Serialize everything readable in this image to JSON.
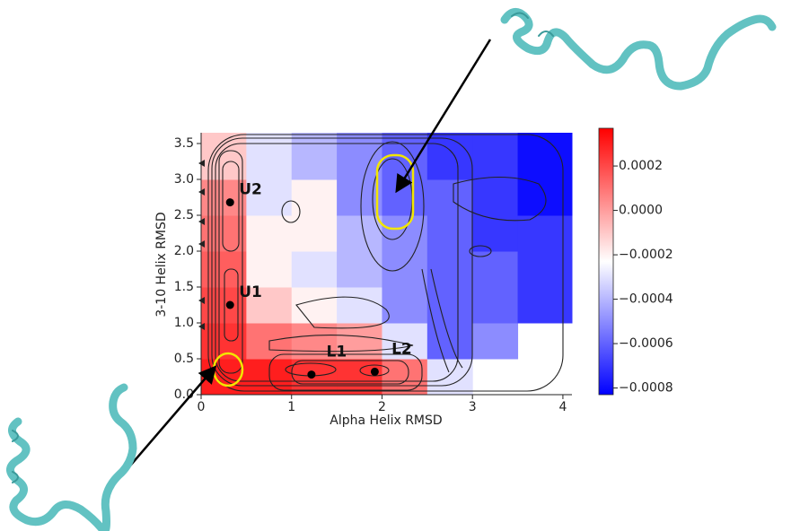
{
  "chart_data": {
    "type": "heatmap",
    "xlabel": "Alpha Helix RMSD",
    "ylabel": "3-10 Helix RMSD",
    "x_bins": [
      0,
      0.5,
      1,
      1.5,
      2,
      2.5,
      3,
      3.5,
      4.1
    ],
    "y_bins": [
      0,
      0.5,
      1,
      1.5,
      2,
      2.5,
      3,
      3.65
    ],
    "values": [
      [
        0.0003,
        0.0003,
        0.00025,
        0.00025,
        0.0001,
        -0.0003,
        null,
        null
      ],
      [
        0.00025,
        0.0001,
        5e-05,
        0.0,
        -0.0003,
        -0.0006,
        -0.0005,
        null
      ],
      [
        0.0002,
        -0.0001,
        -0.0002,
        -0.0003,
        -0.0005,
        -0.0006,
        -0.0006,
        -0.0007
      ],
      [
        0.00015,
        -0.0002,
        -0.0003,
        -0.0004,
        -0.0005,
        -0.0006,
        -0.0006,
        -0.0007
      ],
      [
        0.0001,
        -0.0002,
        -0.0002,
        -0.0004,
        -0.0005,
        -0.0006,
        -0.0007,
        -0.0007
      ],
      [
        5e-05,
        -0.0003,
        -0.0002,
        -0.0005,
        -0.0006,
        -0.0006,
        -0.0007,
        -0.0008
      ],
      [
        -0.0001,
        -0.0003,
        -0.0004,
        -0.0005,
        -0.0006,
        -0.0007,
        -0.0007,
        -0.0008
      ]
    ],
    "colormap": "bwr",
    "xlim": [
      0,
      4.1
    ],
    "ylim": [
      0,
      3.65
    ],
    "clim": [
      -0.00083,
      0.00037
    ],
    "xticks": [
      0,
      1,
      2,
      3,
      4
    ],
    "yticks": [
      {
        "value": 0,
        "label": "0.0"
      },
      {
        "value": 0.5,
        "label": "0.5"
      },
      {
        "value": 1,
        "label": "1.0"
      },
      {
        "value": 1.5,
        "label": "1.5"
      },
      {
        "value": 2,
        "label": "2.0"
      },
      {
        "value": 2.5,
        "label": "2.5"
      },
      {
        "value": 3,
        "label": "3.0"
      },
      {
        "value": 3.5,
        "label": "3.5"
      }
    ],
    "cticks": [
      {
        "value": 0.0002,
        "label": "0.0002"
      },
      {
        "value": 0,
        "label": "0.0000"
      },
      {
        "value": -0.0002,
        "label": "−0.0002"
      },
      {
        "value": -0.0004,
        "label": "−0.0004"
      },
      {
        "value": -0.0006,
        "label": "−0.0006"
      },
      {
        "value": -0.0008,
        "label": "−0.0008"
      }
    ],
    "minima": [
      {
        "label": "U2",
        "x": 0.32,
        "y": 2.68
      },
      {
        "label": "U1",
        "x": 0.32,
        "y": 1.25
      },
      {
        "label": "L1",
        "x": 1.22,
        "y": 0.28
      },
      {
        "label": "L2",
        "x": 1.92,
        "y": 0.32
      }
    ]
  }
}
